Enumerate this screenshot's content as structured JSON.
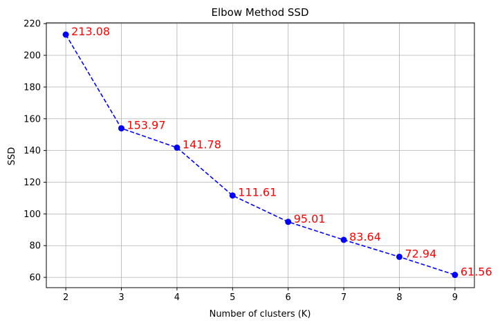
{
  "chart_data": {
    "type": "line",
    "title": "Elbow Method SSD",
    "xlabel": "Number of clusters (K)",
    "ylabel": "SSD",
    "x": [
      2,
      3,
      4,
      5,
      6,
      7,
      8,
      9
    ],
    "series": [
      {
        "values": [
          213.08,
          153.97,
          141.78,
          111.61,
          95.01,
          83.64,
          72.94,
          61.56
        ],
        "labels": [
          "213.08",
          "153.97",
          "141.78",
          "111.61",
          "95.01",
          "83.64",
          "72.94",
          "61.56"
        ]
      }
    ],
    "xlim": [
      1.65,
      9.35
    ],
    "ylim": [
      53.5,
      220.5
    ],
    "xticks": [
      2,
      3,
      4,
      5,
      6,
      7,
      8,
      9
    ],
    "yticks": [
      60,
      80,
      100,
      120,
      140,
      160,
      180,
      200,
      220
    ],
    "grid": true,
    "line_style": "dashed",
    "marker": "circle",
    "colors": {
      "line": "#0000ff",
      "data_label": "#ff0000",
      "grid": "#b0b0b0",
      "axis": "#000000"
    }
  }
}
